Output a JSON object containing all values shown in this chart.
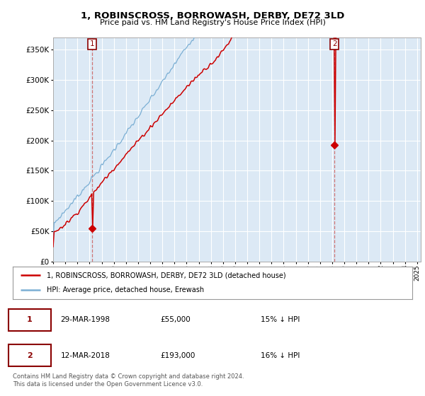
{
  "title": "1, ROBINSCROSS, BORROWASH, DERBY, DE72 3LD",
  "subtitle": "Price paid vs. HM Land Registry's House Price Index (HPI)",
  "xlim_start": 1995.0,
  "xlim_end": 2025.3,
  "ylim": [
    0,
    370000
  ],
  "yticks": [
    0,
    50000,
    100000,
    150000,
    200000,
    250000,
    300000,
    350000
  ],
  "ytick_labels": [
    "£0",
    "£50K",
    "£100K",
    "£150K",
    "£200K",
    "£250K",
    "£300K",
    "£350K"
  ],
  "sale1_date_num": 1998.22,
  "sale1_price": 55000,
  "sale1_label": "1",
  "sale2_date_num": 2018.19,
  "sale2_price": 193000,
  "sale2_label": "2",
  "legend_line1": "1, ROBINSCROSS, BORROWASH, DERBY, DE72 3LD (detached house)",
  "legend_line2": "HPI: Average price, detached house, Erewash",
  "table_row1": [
    "1",
    "29-MAR-1998",
    "£55,000",
    "15% ↓ HPI"
  ],
  "table_row2": [
    "2",
    "12-MAR-2018",
    "£193,000",
    "16% ↓ HPI"
  ],
  "footnote": "Contains HM Land Registry data © Crown copyright and database right 2024.\nThis data is licensed under the Open Government Licence v3.0.",
  "hpi_color": "#7bafd4",
  "sale_color": "#cc0000",
  "vline_color": "#cc6666",
  "grid_color": "#d8e4f0",
  "bg_color": "#ffffff",
  "plot_bg_color": "#dce9f5"
}
